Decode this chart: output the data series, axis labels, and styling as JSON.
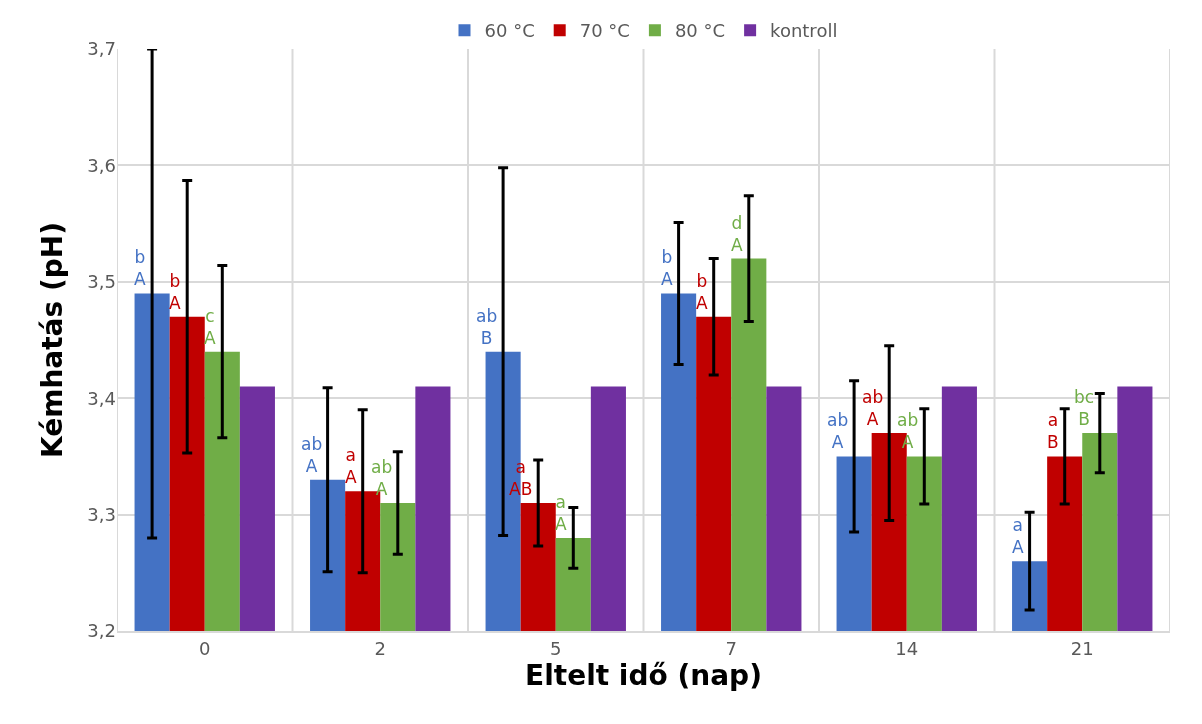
{
  "chart_data": {
    "type": "bar",
    "xlabel": "Eltelt idő (nap)",
    "ylabel": "Kémhatás (pH)",
    "categories": [
      "0",
      "2",
      "5",
      "7",
      "14",
      "21"
    ],
    "series": [
      {
        "name": "60 °C",
        "color": "#4472c4",
        "values": [
          3.49,
          3.33,
          3.44,
          3.49,
          3.35,
          3.26
        ],
        "errors": [
          0.21,
          0.079,
          0.158,
          0.061,
          0.065,
          0.042
        ],
        "value_labels": [
          "b\nA",
          "ab\nA",
          "ab\nB",
          "b\nA",
          "ab\nA",
          "a\nA"
        ]
      },
      {
        "name": "70 °C",
        "color": "#c00000",
        "values": [
          3.47,
          3.32,
          3.31,
          3.47,
          3.37,
          3.35
        ],
        "errors": [
          0.117,
          0.07,
          0.037,
          0.05,
          0.075,
          0.041
        ],
        "value_labels": [
          "b\nA",
          "a\nA",
          "a\nAB",
          "b\nA",
          "ab\nA",
          "a\nB"
        ]
      },
      {
        "name": "80 °C",
        "color": "#70ad47",
        "values": [
          3.44,
          3.31,
          3.28,
          3.52,
          3.35,
          3.37
        ],
        "errors": [
          0.074,
          0.044,
          0.026,
          0.054,
          0.041,
          0.034
        ],
        "value_labels": [
          "c\nA",
          "ab\nA",
          "a\nA",
          "d\nA",
          "ab\nA",
          "bc\nB"
        ]
      },
      {
        "name": "kontroll",
        "color": "#7030a0",
        "values": [
          3.41,
          3.41,
          3.41,
          3.41,
          3.41,
          3.41
        ]
      }
    ],
    "ylim": [
      3.2,
      3.7
    ],
    "yticks": [
      {
        "value": 3.2,
        "label": "3,2"
      },
      {
        "value": 3.3,
        "label": "3,3"
      },
      {
        "value": 3.4,
        "label": "3,4"
      },
      {
        "value": 3.5,
        "label": "3,5"
      },
      {
        "value": 3.6,
        "label": "3,6"
      },
      {
        "value": 3.7,
        "label": "3,7"
      }
    ],
    "grid": true,
    "legend": "top"
  }
}
